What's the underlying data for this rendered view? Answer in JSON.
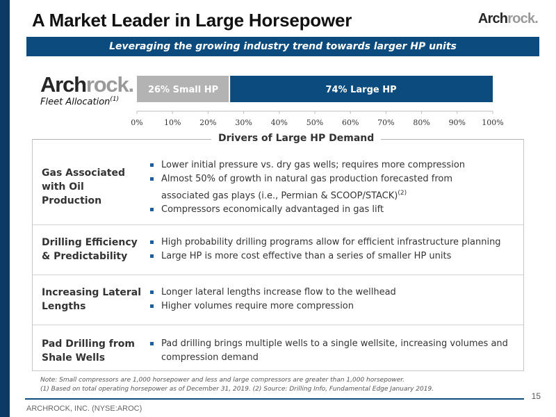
{
  "header": {
    "title": "A Market Leader in Large Horsepower",
    "logo_part1": "Arch",
    "logo_part2": "rock."
  },
  "banner": "Leveraging the growing industry trend towards larger HP units",
  "fleet": {
    "logo_part1": "Arch",
    "logo_part2": "rock.",
    "label": "Fleet Allocation",
    "label_note": "(1)"
  },
  "chart_data": {
    "type": "bar",
    "orientation": "horizontal-stacked",
    "series": [
      {
        "name": "26% Small HP",
        "value": 26,
        "color": "#b3b3b3"
      },
      {
        "name": "74% Large HP",
        "value": 74,
        "color": "#0c4b7e"
      }
    ],
    "xlim": [
      0,
      100
    ],
    "xticks": [
      "0%",
      "10%",
      "20%",
      "30%",
      "40%",
      "50%",
      "60%",
      "70%",
      "80%",
      "90%",
      "100%"
    ],
    "grid": false
  },
  "drivers": {
    "title": "Drivers of Large HP Demand",
    "rows": [
      {
        "label_lines": [
          "Gas Associated",
          "with Oil",
          "Production"
        ],
        "bullets": [
          {
            "text": "Lower initial pressure vs. dry gas wells; requires more compression"
          },
          {
            "text": "Almost 50% of growth in natural gas production forecasted from"
          },
          {
            "text": "associated gas plays (i.e., Permian & SCOOP/STACK)",
            "note": "(2)"
          },
          {
            "text": "Compressors economically advantaged in gas lift"
          }
        ]
      },
      {
        "label_lines": [
          "Drilling Efficiency",
          "& Predictability"
        ],
        "bullets": [
          {
            "text": "High probability drilling programs allow for efficient infrastructure planning"
          },
          {
            "text": "Large HP is more cost effective than a series of smaller HP units"
          }
        ]
      },
      {
        "label_lines": [
          "Increasing Lateral",
          "Lengths"
        ],
        "bullets": [
          {
            "text": "Longer lateral lengths increase flow to the wellhead"
          },
          {
            "text": "Higher volumes require more compression"
          }
        ]
      },
      {
        "label_lines": [
          "Pad Drilling from",
          "Shale Wells"
        ],
        "bullets": [
          {
            "text": "Pad drilling brings multiple wells to a single wellsite, increasing volumes and"
          },
          {
            "text": "compression demand"
          }
        ]
      }
    ]
  },
  "notes": {
    "line1": "Note: Small compressors are 1,000 horsepower and less and large compressors are greater than 1,000 horsepower.",
    "line2": "(1) Based on total operating horsepower as of December 31, 2019. (2) Source: Drilling Info, Fundamental Edge January 2019."
  },
  "footer": {
    "company": "ARCHROCK, INC. (NYSE:AROC)",
    "page": "15"
  }
}
